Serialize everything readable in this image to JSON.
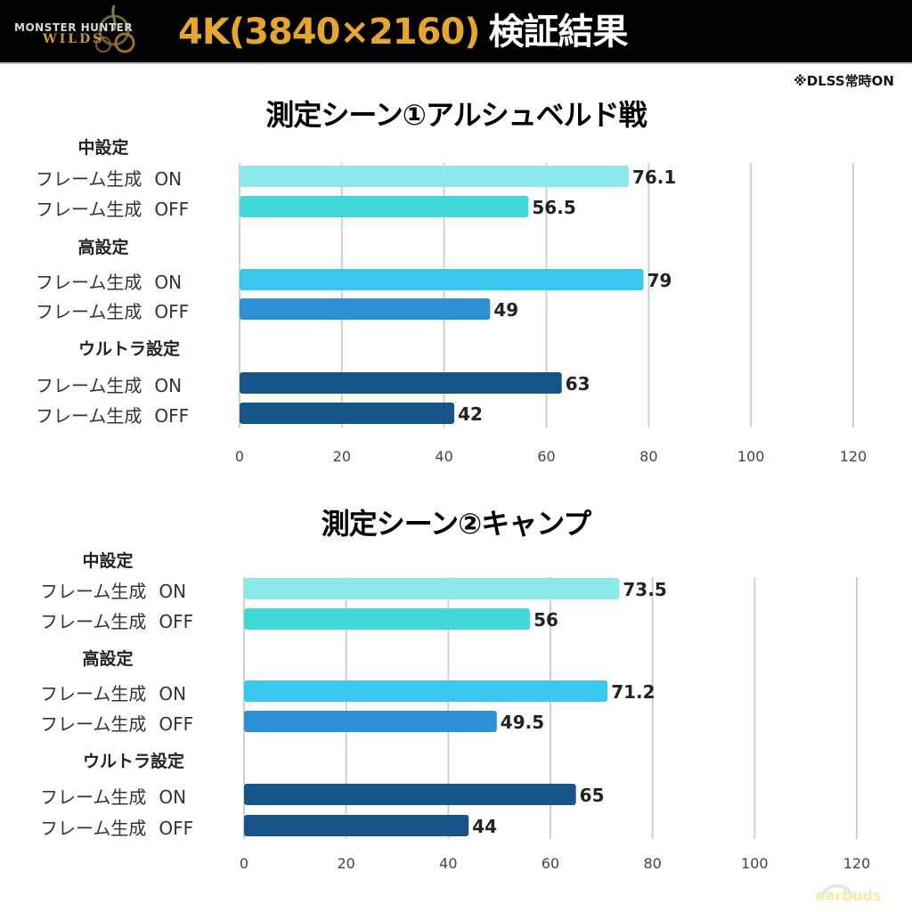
{
  "header": {
    "logo_line1": "MONSTER HUNTER",
    "logo_line2": "WILDS",
    "title_resolution": "4K(3840×2160)",
    "title_suffix": "検証結果"
  },
  "note": "※DLSS常時ON",
  "watermark": "earbuds",
  "colors": {
    "mid_on": "#8aeae8",
    "mid_off": "#3fdad6",
    "high_on": "#38c8ee",
    "high_off": "#2e8fd4",
    "ultra_on": "#17548a",
    "ultra_off": "#17548a",
    "header_gold": "#e3a72f",
    "grid": "#d0d0d0"
  },
  "chart_data": [
    {
      "type": "bar",
      "orientation": "horizontal",
      "title": "測定シーン①アルシュベルド戦",
      "xlim": [
        0,
        120
      ],
      "xticks": [
        "0",
        "20",
        "40",
        "60",
        "80",
        "100",
        "120"
      ],
      "grid": true,
      "groups": [
        {
          "label": "中設定",
          "bars": [
            {
              "label": "フレーム生成",
              "state": "ON",
              "value": 76.1,
              "value_label": "76.1",
              "color_key": "mid_on"
            },
            {
              "label": "フレーム生成",
              "state": "OFF",
              "value": 56.5,
              "value_label": "56.5",
              "color_key": "mid_off"
            }
          ]
        },
        {
          "label": "高設定",
          "bars": [
            {
              "label": "フレーム生成",
              "state": "ON",
              "value": 79,
              "value_label": "79",
              "color_key": "high_on"
            },
            {
              "label": "フレーム生成",
              "state": "OFF",
              "value": 49,
              "value_label": "49",
              "color_key": "high_off"
            }
          ]
        },
        {
          "label": "ウルトラ設定",
          "bars": [
            {
              "label": "フレーム生成",
              "state": "ON",
              "value": 63,
              "value_label": "63",
              "color_key": "ultra_on"
            },
            {
              "label": "フレーム生成",
              "state": "OFF",
              "value": 42,
              "value_label": "42",
              "color_key": "ultra_off"
            }
          ]
        }
      ]
    },
    {
      "type": "bar",
      "orientation": "horizontal",
      "title": "測定シーン②キャンプ",
      "xlim": [
        0,
        120
      ],
      "xticks": [
        "0",
        "20",
        "40",
        "60",
        "80",
        "100",
        "120"
      ],
      "grid": true,
      "groups": [
        {
          "label": "中設定",
          "bars": [
            {
              "label": "フレーム生成",
              "state": "ON",
              "value": 73.5,
              "value_label": "73.5",
              "color_key": "mid_on"
            },
            {
              "label": "フレーム生成",
              "state": "OFF",
              "value": 56,
              "value_label": "56",
              "color_key": "mid_off"
            }
          ]
        },
        {
          "label": "高設定",
          "bars": [
            {
              "label": "フレーム生成",
              "state": "ON",
              "value": 71.2,
              "value_label": "71.2",
              "color_key": "high_on"
            },
            {
              "label": "フレーム生成",
              "state": "OFF",
              "value": 49.5,
              "value_label": "49.5",
              "color_key": "high_off"
            }
          ]
        },
        {
          "label": "ウルトラ設定",
          "bars": [
            {
              "label": "フレーム生成",
              "state": "ON",
              "value": 65,
              "value_label": "65",
              "color_key": "ultra_on"
            },
            {
              "label": "フレーム生成",
              "state": "OFF",
              "value": 44,
              "value_label": "44",
              "color_key": "ultra_off"
            }
          ]
        }
      ]
    }
  ]
}
